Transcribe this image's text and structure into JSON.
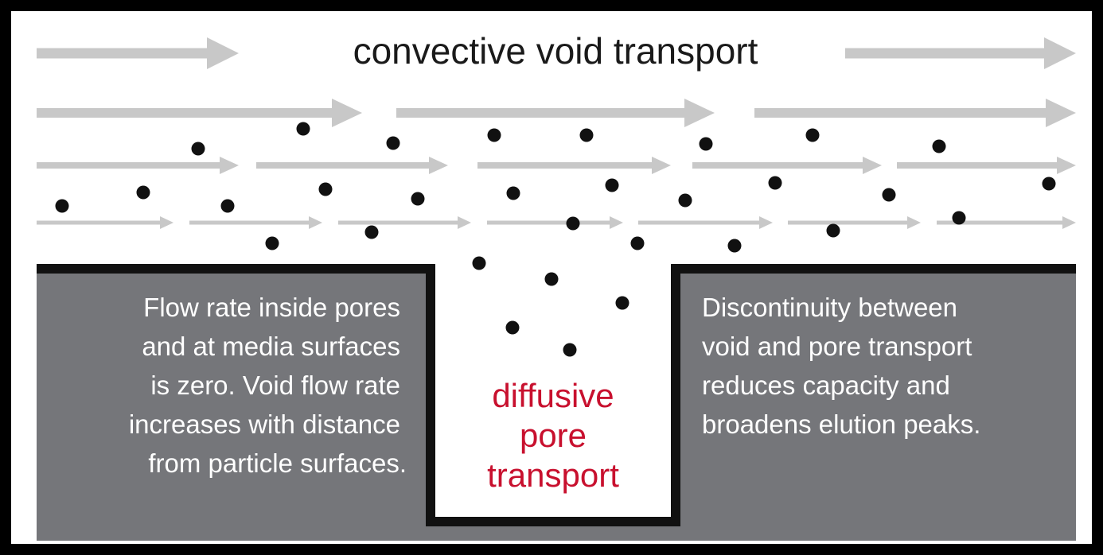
{
  "title": "convective void transport",
  "center_label": [
    "diffusive",
    "pore",
    "transport"
  ],
  "left_text": [
    "Flow rate inside pores",
    "and at media surfaces",
    "is zero. Void flow rate",
    "increases with distance",
    "from particle surfaces."
  ],
  "right_text": [
    "Discontinuity between",
    "void and pore transport",
    "reduces capacity and",
    "broadens elution peaks."
  ],
  "colors": {
    "arrow": "#c8c8c8",
    "media": "#75767a",
    "media_outline": "#111111",
    "particle": "#111111",
    "title_text": "#1a1a1a",
    "center_text": "#c8102e",
    "panel_text": "#ffffff"
  }
}
